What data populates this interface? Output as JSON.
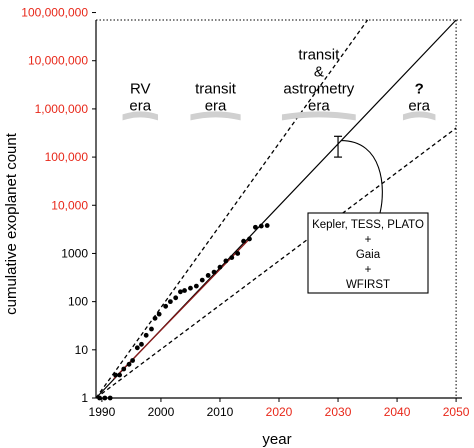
{
  "chart_data": {
    "type": "scatter",
    "xlabel": "year",
    "ylabel": "cumulative exoplanet count",
    "y_scale": "log",
    "xlim": [
      1989,
      2051
    ],
    "ylim": [
      1,
      70000000
    ],
    "grid": false,
    "x_ticks": [
      {
        "value": 1990,
        "label": "1990",
        "color": "#000000"
      },
      {
        "value": 2000,
        "label": "2000",
        "color": "#000000"
      },
      {
        "value": 2010,
        "label": "2010",
        "color": "#000000"
      },
      {
        "value": 2020,
        "label": "2020",
        "color": "#e8281a"
      },
      {
        "value": 2030,
        "label": "2030",
        "color": "#e8281a"
      },
      {
        "value": 2040,
        "label": "2040",
        "color": "#e8281a"
      },
      {
        "value": 2050,
        "label": "2050",
        "color": "#e8281a"
      }
    ],
    "y_ticks": [
      {
        "value": 1,
        "label": "1",
        "color": "#000000"
      },
      {
        "value": 10,
        "label": "10",
        "color": "#000000"
      },
      {
        "value": 100,
        "label": "100",
        "color": "#000000"
      },
      {
        "value": 1000,
        "label": "1000",
        "color": "#000000"
      },
      {
        "value": 10000,
        "label": "10,000",
        "color": "#e8281a"
      },
      {
        "value": 100000,
        "label": "100,000",
        "color": "#e8281a"
      },
      {
        "value": 1000000,
        "label": "1,000,000",
        "color": "#e8281a"
      },
      {
        "value": 10000000,
        "label": "10,000,000",
        "color": "#e8281a"
      },
      {
        "value": 100000000,
        "label": "100,000,000",
        "color": "#e8281a"
      }
    ],
    "points": [
      {
        "x": 1989.6,
        "y": 1
      },
      {
        "x": 1990.5,
        "y": 1
      },
      {
        "x": 1991.4,
        "y": 1
      },
      {
        "x": 1992.3,
        "y": 3
      },
      {
        "x": 1993.0,
        "y": 3
      },
      {
        "x": 1993.7,
        "y": 4
      },
      {
        "x": 1994.6,
        "y": 5
      },
      {
        "x": 1995.2,
        "y": 6
      },
      {
        "x": 1996.0,
        "y": 11
      },
      {
        "x": 1996.7,
        "y": 13
      },
      {
        "x": 1997.5,
        "y": 20
      },
      {
        "x": 1998.4,
        "y": 27
      },
      {
        "x": 1999.0,
        "y": 45
      },
      {
        "x": 1999.7,
        "y": 55
      },
      {
        "x": 2000.8,
        "y": 80
      },
      {
        "x": 2001.6,
        "y": 100
      },
      {
        "x": 2002.5,
        "y": 120
      },
      {
        "x": 2003.3,
        "y": 160
      },
      {
        "x": 2004.0,
        "y": 170
      },
      {
        "x": 2005.0,
        "y": 190
      },
      {
        "x": 2006.0,
        "y": 210
      },
      {
        "x": 2007.0,
        "y": 280
      },
      {
        "x": 2008.0,
        "y": 350
      },
      {
        "x": 2009.0,
        "y": 410
      },
      {
        "x": 2010.0,
        "y": 520
      },
      {
        "x": 2011.0,
        "y": 700
      },
      {
        "x": 2012.0,
        "y": 820
      },
      {
        "x": 2013.0,
        "y": 1000
      },
      {
        "x": 2014.0,
        "y": 1800
      },
      {
        "x": 2015.0,
        "y": 2000
      },
      {
        "x": 2016.0,
        "y": 3500
      },
      {
        "x": 2017.0,
        "y": 3700
      },
      {
        "x": 2018.0,
        "y": 3800
      }
    ],
    "fit_line": {
      "from": {
        "x": 1989,
        "y": 1
      },
      "to": {
        "x": 2050,
        "y": 70000000
      }
    },
    "fit_segment": {
      "from": {
        "x": 1992,
        "y": 2.5
      },
      "to": {
        "x": 2015,
        "y": 2000
      }
    },
    "bound_upper": {
      "from": {
        "x": 1989,
        "y": 1
      },
      "to": {
        "x": 2035,
        "y": 70000000
      }
    },
    "bound_lower": {
      "from": {
        "x": 1989,
        "y": 1
      },
      "to": {
        "x": 2050,
        "y": 400000
      }
    },
    "projection": {
      "x": 2030,
      "y": 200000,
      "low": 100000,
      "high": 270000
    },
    "top_reference": {
      "y": 70000000,
      "x_from": 1989,
      "x_to": 2051
    },
    "right_reference": {
      "x": 2050
    },
    "eras": [
      {
        "lines": [
          "RV",
          "era"
        ],
        "x_from": 1993.5,
        "x_to": 1999.5,
        "y": 1500000
      },
      {
        "lines": [
          "transit",
          "era"
        ],
        "x_from": 2005.0,
        "x_to": 2013.5,
        "y": 1500000
      },
      {
        "lines": [
          "transit",
          "&",
          "astrometry",
          "era"
        ],
        "x_from": 2020.5,
        "x_to": 2033.0,
        "y": 1500000
      },
      {
        "lines": [
          "?",
          "era"
        ],
        "x_from": 2041.0,
        "x_to": 2046.5,
        "y": 1500000
      }
    ],
    "annotation": {
      "lines": [
        "Kepler, TESS, PLATO",
        "+",
        "Gaia",
        "+",
        "WFIRST"
      ]
    },
    "colors": {
      "accent": "#e8281a",
      "fit_segment": "#8b1a1a",
      "era_shade": "#d0d0d0"
    }
  }
}
